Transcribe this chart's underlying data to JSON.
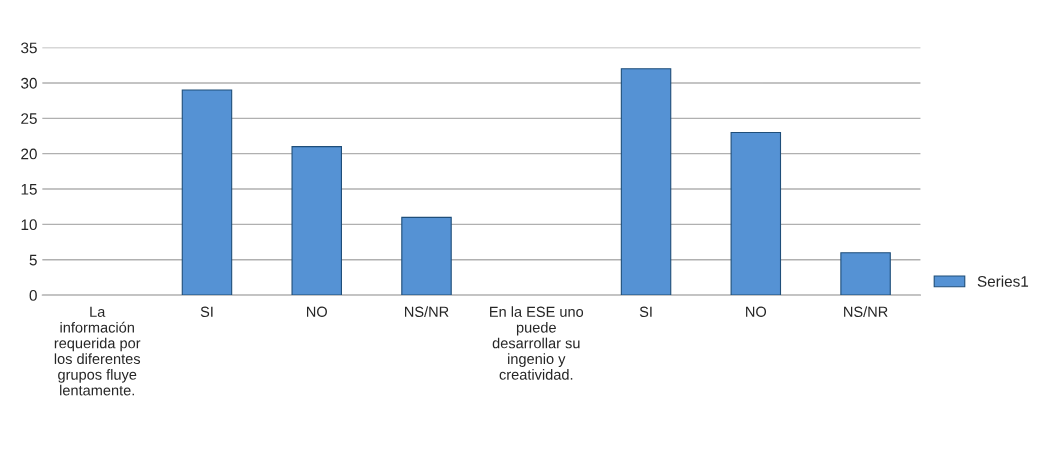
{
  "chart_data": {
    "type": "bar",
    "categories": [
      "La\ninformación\nrequerida por\nlos diferentes\ngrupos fluye\nlentamente.",
      "SI",
      "NO",
      "NS/NR",
      "En la ESE uno\npuede\ndesarrollar su\ningenio y\ncreatividad.",
      "SI",
      "NO",
      "NS/NR"
    ],
    "series": [
      {
        "name": "Series1",
        "color": "#5592d4",
        "values": [
          null,
          29,
          21,
          11,
          null,
          32,
          23,
          6
        ]
      }
    ],
    "ylim": [
      0,
      35
    ],
    "yticks": [
      0,
      5,
      10,
      15,
      20,
      25,
      30,
      35
    ],
    "grid": "y",
    "legend": "right"
  }
}
